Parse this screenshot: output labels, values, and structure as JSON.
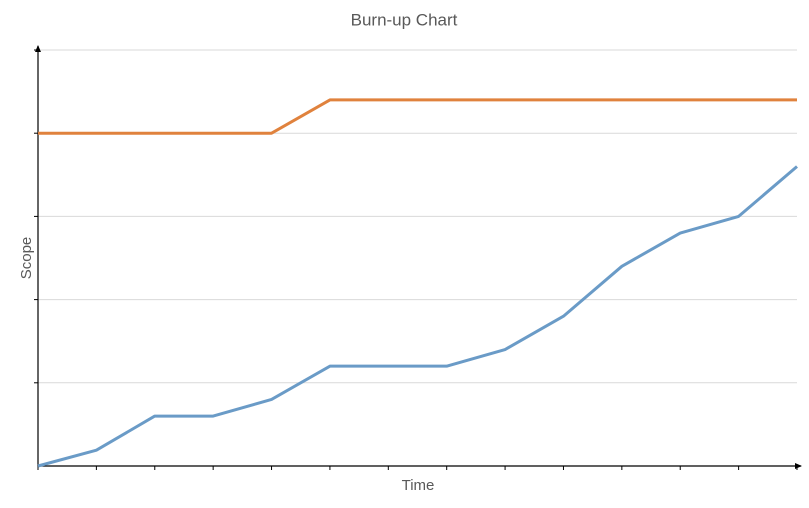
{
  "chart_data": {
    "type": "line",
    "title": "Burn-up Chart",
    "x_label": "Time",
    "y_label": "Scope",
    "x": [
      0,
      1,
      2,
      3,
      4,
      5,
      6,
      7,
      8,
      9,
      10,
      11,
      12,
      13
    ],
    "xlim": [
      0,
      13
    ],
    "xticks": [
      0,
      1,
      2,
      3,
      4,
      5,
      6,
      7,
      8,
      9,
      10,
      11,
      12,
      13
    ],
    "ylim": [
      0,
      5
    ],
    "yticks": [
      1,
      2,
      3,
      4,
      5
    ],
    "grid": true,
    "series": [
      {
        "color": "#e0823d",
        "values": [
          4,
          4,
          4,
          4,
          4,
          4.4,
          4.4,
          4.4,
          4.4,
          4.4,
          4.4,
          4.4,
          4.4,
          4.4
        ]
      },
      {
        "color": "#6a9bc7",
        "values": [
          0,
          0.19,
          0.6,
          0.6,
          0.8,
          1.2,
          1.2,
          1.2,
          1.4,
          1.8,
          2.4,
          2.8,
          3.0,
          3.6
        ]
      }
    ]
  }
}
